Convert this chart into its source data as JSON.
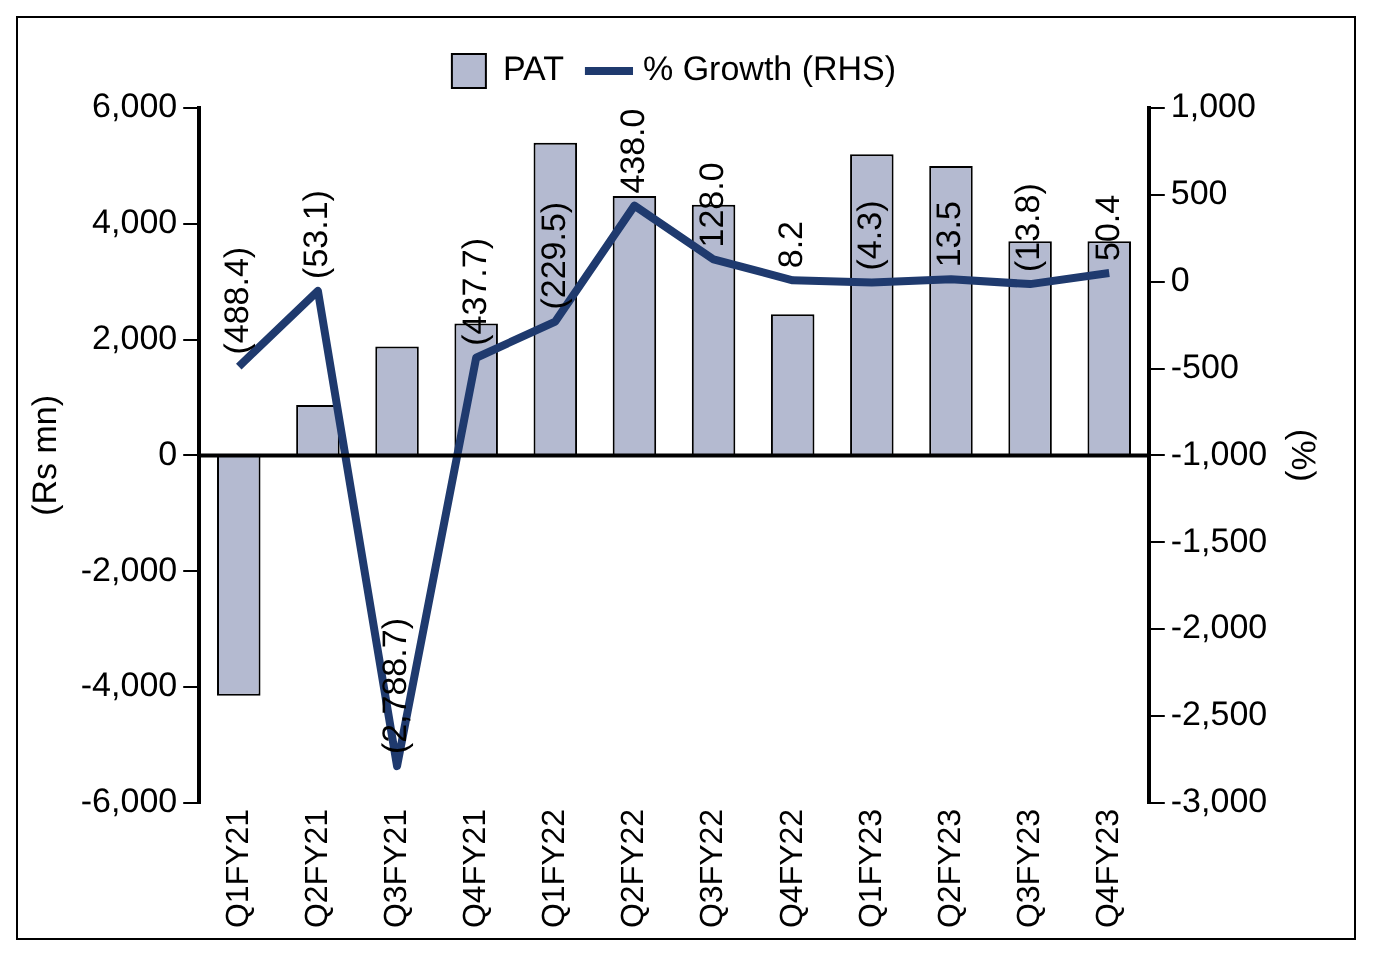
{
  "chart_data": {
    "type": "bar",
    "categories": [
      "Q1FY21",
      "Q2FY21",
      "Q3FY21",
      "Q4FY21",
      "Q1FY22",
      "Q2FY22",
      "Q3FY22",
      "Q4FY22",
      "Q1FY23",
      "Q2FY23",
      "Q3FY23",
      "Q4FY23"
    ],
    "series": [
      {
        "name": "PAT",
        "type": "bar",
        "color": "#b4bad0",
        "values": [
          -4150,
          870,
          1880,
          2280,
          5400,
          4480,
          4330,
          2440,
          5200,
          5000,
          3700,
          3700
        ]
      },
      {
        "name": "% Growth (RHS)",
        "type": "line",
        "axis": "y2",
        "color": "#1f3a6e",
        "values": [
          -488.4,
          -53.1,
          -2788.7,
          -437.7,
          -229.5,
          438.0,
          128.0,
          8.2,
          -4.3,
          13.5,
          -13.8,
          50.4
        ],
        "value_labels": [
          "(488.4)",
          "(53.1)",
          "(2,788.7)",
          "(437.7)",
          "(229.5)",
          "438.0",
          "128.0",
          "8.2",
          "(4.3)",
          "13.5",
          "(13.8)",
          "50.4"
        ]
      }
    ],
    "ylabel": "(Rs mn)",
    "y2label": "(%)",
    "ylim": [
      -6000,
      6000
    ],
    "yticks": [
      {
        "value": -6000,
        "label": "-6,000"
      },
      {
        "value": -4000,
        "label": "-4,000"
      },
      {
        "value": -2000,
        "label": "-2,000"
      },
      0,
      {
        "value": 2000,
        "label": "2,000"
      },
      {
        "value": 4000,
        "label": "4,000"
      },
      {
        "value": 6000,
        "label": "6,000"
      }
    ],
    "y2lim": [
      -3000,
      1000
    ],
    "y2ticks": [
      {
        "value": -3000,
        "label": "-3,000"
      },
      {
        "value": -2500,
        "label": "-2,500"
      },
      {
        "value": -2000,
        "label": "-2,000"
      },
      {
        "value": -1500,
        "label": "-1,500"
      },
      {
        "value": -1000,
        "label": "-1,000"
      },
      -500,
      0,
      500,
      {
        "value": 1000,
        "label": "1,000"
      }
    ],
    "legend": "top",
    "marker": "none",
    "line_style": "solid"
  }
}
